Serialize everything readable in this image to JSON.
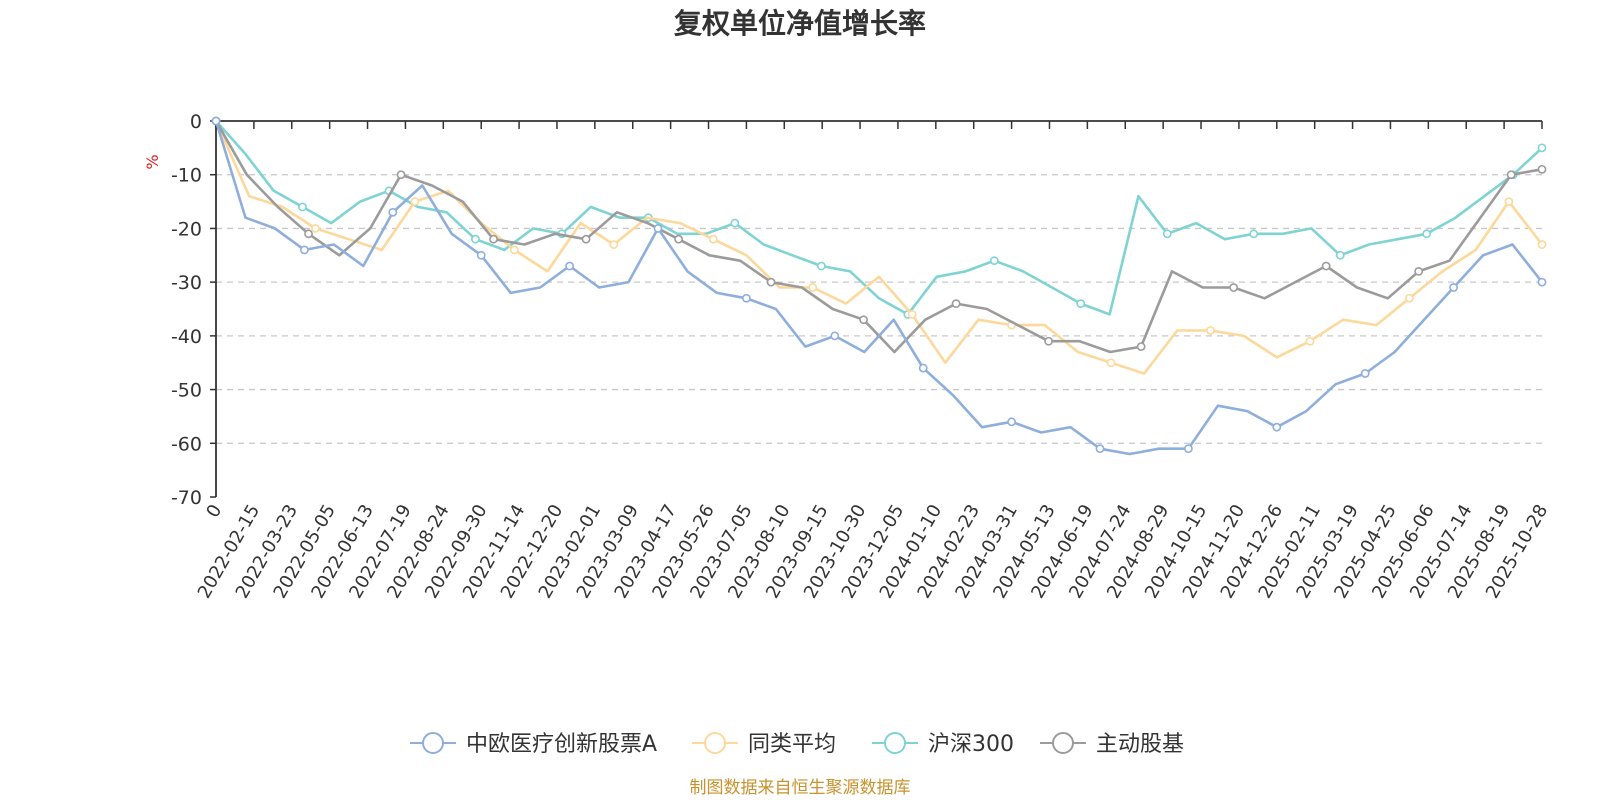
{
  "chart_data": {
    "type": "line",
    "title": "复权单位净值增长率",
    "ylabel": "%",
    "ylim": [
      -70,
      0
    ],
    "yticks": [
      0,
      -10,
      -20,
      -30,
      -40,
      -50,
      -60,
      -70
    ],
    "x_start_label": "0",
    "xticks": [
      "2022-02-15",
      "2022-03-23",
      "2022-05-05",
      "2022-06-13",
      "2022-07-19",
      "2022-08-24",
      "2022-09-30",
      "2022-11-14",
      "2022-12-20",
      "2023-02-01",
      "2023-03-09",
      "2023-04-17",
      "2023-05-26",
      "2023-07-05",
      "2023-08-10",
      "2023-09-15",
      "2023-10-30",
      "2023-12-05",
      "2024-01-10",
      "2024-02-23",
      "2024-03-31",
      "2024-05-13",
      "2024-06-19",
      "2024-07-24",
      "2024-08-29",
      "2024-10-15",
      "2024-11-20",
      "2024-12-26",
      "2025-02-11",
      "2025-03-19",
      "2025-04-25",
      "2025-06-06",
      "2025-07-14",
      "2025-08-19",
      "2025-10-28"
    ],
    "grid": true,
    "series": [
      {
        "name": "中欧医疗创新股票A",
        "color": "#8eaedb",
        "values": [
          0,
          -18,
          -20,
          -24,
          -23,
          -27,
          -17,
          -12,
          -21,
          -25,
          -32,
          -31,
          -27,
          -31,
          -30,
          -20,
          -28,
          -32,
          -33,
          -35,
          -42,
          -40,
          -43,
          -37,
          -46,
          -51,
          -57,
          -56,
          -58,
          -57,
          -61,
          -62,
          -61,
          -61,
          -53,
          -54,
          -57,
          -54,
          -49,
          -47,
          -43,
          -37,
          -31,
          -25,
          -23,
          -30
        ]
      },
      {
        "name": "同类平均",
        "color": "#fcd89a",
        "values": [
          0,
          -14,
          -16,
          -20,
          -22,
          -24,
          -15,
          -13,
          -19,
          -24,
          -28,
          -19,
          -23,
          -18,
          -19,
          -22,
          -25,
          -31,
          -31,
          -34,
          -29,
          -36,
          -45,
          -37,
          -38,
          -38,
          -43,
          -45,
          -47,
          -39,
          -39,
          -40,
          -44,
          -41,
          -37,
          -38,
          -33,
          -28,
          -24,
          -15,
          -23
        ]
      },
      {
        "name": "沪深300",
        "color": "#7fd3d3",
        "values": [
          0,
          -6,
          -13,
          -16,
          -19,
          -15,
          -13,
          -16,
          -17,
          -22,
          -24,
          -20,
          -21,
          -16,
          -18,
          -18,
          -21,
          -21,
          -19,
          -23,
          -25,
          -27,
          -28,
          -33,
          -36,
          -29,
          -28,
          -26,
          -28,
          -31,
          -34,
          -36,
          -14,
          -21,
          -19,
          -22,
          -21,
          -21,
          -20,
          -25,
          -23,
          -22,
          -21,
          -18,
          -14,
          -10,
          -5
        ]
      },
      {
        "name": "主动股基",
        "color": "#9b9b9b",
        "values": [
          0,
          -10,
          -16,
          -21,
          -25,
          -20,
          -10,
          -12,
          -15,
          -22,
          -23,
          -21,
          -22,
          -17,
          -19,
          -22,
          -25,
          -26,
          -30,
          -31,
          -35,
          -37,
          -43,
          -37,
          -34,
          -35,
          -38,
          -41,
          -41,
          -43,
          -42,
          -28,
          -31,
          -31,
          -33,
          -30,
          -27,
          -31,
          -33,
          -28,
          -26,
          -18,
          -10,
          -9
        ]
      }
    ],
    "legend_position": "bottom-center",
    "source": "制图数据来自恒生聚源数据库",
    "source_color": "#c8922d",
    "unit_color": "#e02020",
    "grid_color": "#c8c8c8",
    "axis_color": "#333333"
  }
}
